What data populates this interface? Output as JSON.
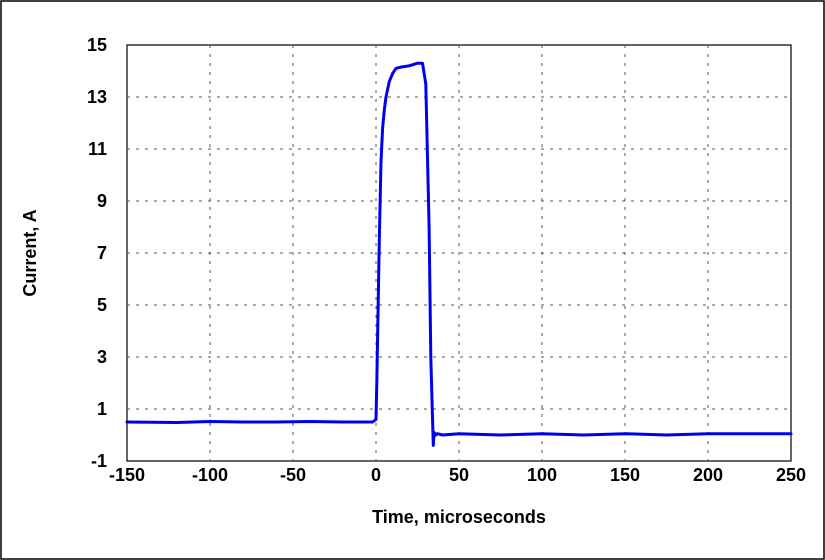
{
  "chart_data": {
    "type": "line",
    "title": "",
    "xlabel": "Time, microseconds",
    "ylabel": "Current, A",
    "xlim": [
      -150,
      250
    ],
    "ylim": [
      -1,
      15
    ],
    "x_ticks": [
      -150,
      -100,
      -50,
      0,
      50,
      100,
      150,
      200,
      250
    ],
    "y_ticks": [
      -1,
      1,
      3,
      5,
      7,
      9,
      11,
      13,
      15
    ],
    "grid": true,
    "legend": "none",
    "series_color": "#0000ee",
    "series": [
      {
        "name": "",
        "x": [
          -150,
          -120,
          -100,
          -80,
          -60,
          -40,
          -20,
          -2,
          0,
          0.5,
          1,
          2,
          3,
          4,
          5,
          6,
          8,
          10,
          12,
          15,
          20,
          25,
          28,
          30,
          32,
          33,
          34,
          34.5,
          35,
          36,
          37,
          40,
          50,
          75,
          100,
          125,
          150,
          175,
          200,
          225,
          250
        ],
        "y": [
          0.5,
          0.48,
          0.52,
          0.5,
          0.5,
          0.52,
          0.5,
          0.5,
          0.6,
          2.0,
          4.0,
          7.5,
          10.5,
          11.8,
          12.5,
          13.0,
          13.6,
          13.9,
          14.1,
          14.15,
          14.2,
          14.3,
          14.3,
          13.5,
          8.0,
          3.0,
          0.8,
          -0.4,
          0.1,
          0.0,
          0.05,
          0.0,
          0.05,
          0.0,
          0.05,
          0.0,
          0.05,
          0.0,
          0.05,
          0.05,
          0.05
        ]
      }
    ]
  }
}
